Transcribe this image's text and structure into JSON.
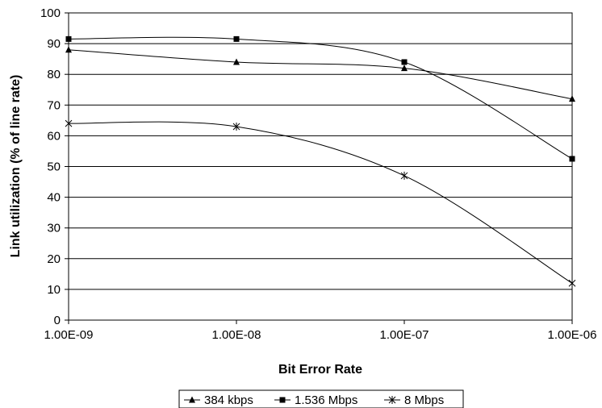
{
  "chart_data": {
    "type": "line",
    "title": "",
    "xlabel": "Bit Error Rate",
    "ylabel": "Link utilization (% of line rate)",
    "x_scale": "log",
    "x": [
      1e-09,
      1e-08,
      1e-07,
      1e-06
    ],
    "x_tick_labels": [
      "1.00E-09",
      "1.00E-08",
      "1.00E-07",
      "1.00E-06"
    ],
    "ylim": [
      0,
      100
    ],
    "y_ticks": [
      0,
      10,
      20,
      30,
      40,
      50,
      60,
      70,
      80,
      90,
      100
    ],
    "grid": "horizontal",
    "legend_position": "bottom",
    "series": [
      {
        "name": "384 kbps",
        "marker": "triangle",
        "values": [
          88,
          84,
          82,
          72
        ]
      },
      {
        "name": "1.536 Mbps",
        "marker": "square",
        "values": [
          91.5,
          91.5,
          84,
          52.5
        ]
      },
      {
        "name": "8 Mbps",
        "marker": "asterisk",
        "values": [
          64,
          63,
          47,
          12
        ]
      }
    ],
    "colors": {
      "line": "#000000",
      "grid": "#000000",
      "background": "#ffffff"
    }
  }
}
